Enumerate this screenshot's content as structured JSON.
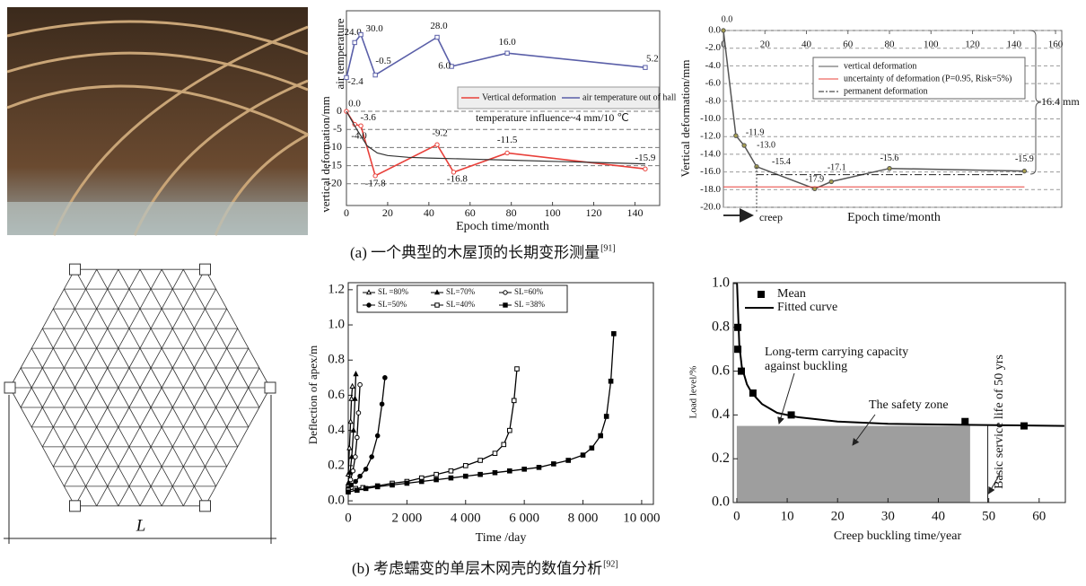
{
  "captions": [
    {
      "text": "(a) 一个典型的木屋顶的长期变形测量",
      "ref": "[91]"
    },
    {
      "text": "(b) 考虑蠕变的单层木网壳的数值分析",
      "ref": "[92]"
    }
  ],
  "diagram": {
    "label": "L"
  },
  "chart_data": [
    {
      "type": "line",
      "x_label": "Epoch time/month",
      "y_label": "vertical deformation/mm",
      "y2_label": "air temperature",
      "xlim": [
        0,
        152
      ],
      "xticks": [
        0,
        20,
        40,
        60,
        80,
        100,
        120,
        140
      ],
      "ylim": [
        -26,
        1.5
      ],
      "yticks": [
        0,
        -5,
        -10,
        -15,
        -20
      ],
      "y2lim": [
        -15,
        48
      ],
      "grid": true,
      "annotation": "temperature influence~4 mm/10 ℃",
      "series": [
        {
          "name": "Vertical deformation",
          "color": "#e8403a",
          "x": [
            0,
            4,
            7,
            14,
            44,
            52,
            78,
            145
          ],
          "values": [
            0,
            -3.6,
            -4.0,
            -17.8,
            -9.2,
            -16.8,
            -11.5,
            -15.9
          ],
          "value_labels": [
            "0.0",
            "-3.6",
            "-4.0",
            "-17.8",
            "-9.2",
            "-16.8",
            "-11.5",
            "-15.9"
          ]
        },
        {
          "name": "air temperature out of hall",
          "color": "#5a5fa8",
          "axis": "y2",
          "x": [
            0,
            4,
            7,
            14,
            44,
            51,
            78,
            145
          ],
          "values": [
            -2.4,
            24.0,
            30.0,
            -0.5,
            28.0,
            6.0,
            16.0,
            5.2
          ],
          "value_labels": [
            "-2.4",
            "24.0",
            "30.0",
            "-0.5",
            "28.0",
            "6.0",
            "16.0",
            "5.2"
          ]
        },
        {
          "color": "#333333",
          "x": [
            0,
            5,
            10,
            15,
            20,
            30,
            40,
            60,
            80,
            100,
            120,
            145
          ],
          "values": [
            0,
            -5,
            -9.5,
            -11.5,
            -12.2,
            -12.7,
            -12.9,
            -13.2,
            -13.5,
            -13.8,
            -14.1,
            -14.5
          ]
        }
      ]
    },
    {
      "type": "line",
      "x_label": "Epoch time/month",
      "y_label": "Vertical deformation/mm",
      "xlim": [
        0,
        163
      ],
      "xticks": [
        0,
        20,
        40,
        60,
        80,
        100,
        120,
        140,
        160
      ],
      "ylim": [
        -20,
        0
      ],
      "yticks": [
        {
          "value": 0,
          "label": "0.0"
        },
        {
          "value": -2,
          "label": "-2.0"
        },
        {
          "value": -4,
          "label": "-4.0"
        },
        {
          "value": -6,
          "label": "-6.0"
        },
        {
          "value": -8,
          "label": "-8.0"
        },
        {
          "value": -10,
          "label": "-10.0"
        },
        {
          "value": -12,
          "label": "-12.0"
        },
        {
          "value": -14,
          "label": "-14.0"
        },
        {
          "value": -16,
          "label": "-16.0"
        },
        {
          "value": -18,
          "label": "-18.0"
        },
        {
          "value": -20,
          "label": "-20.0"
        }
      ],
      "grid": true,
      "annotations": {
        "total": "16.4 mm",
        "creep": "creep"
      },
      "series": [
        {
          "name": "vertical deformation",
          "color": "#555555",
          "marker_color": "#a8a050",
          "x": [
            0,
            6,
            10,
            16,
            44,
            52,
            80,
            145
          ],
          "values": [
            0,
            -11.9,
            -13.0,
            -15.4,
            -17.9,
            -17.1,
            -15.6,
            -15.9
          ],
          "value_labels": [
            "0.0",
            "-11.9",
            "-13.0",
            "-15.4",
            "-17.9",
            "-17.1",
            "-15.6",
            "-15.9"
          ]
        },
        {
          "name": "uncertainty of deformation (P=0.95, Risk=5%)",
          "color": "#e8403a",
          "x": [
            0,
            145
          ],
          "values": [
            -17.7,
            -17.7
          ]
        },
        {
          "name": "permanent deformation",
          "color": "#222222",
          "dash": "dashdot",
          "x": [
            16,
            145
          ],
          "values": [
            -16.3,
            -16.3
          ]
        }
      ]
    },
    {
      "type": "line",
      "x_label": "Time /day",
      "y_label": "Deflection of apex/m",
      "xlim": [
        0,
        10400
      ],
      "xticks": [
        0,
        {
          "value": 2000,
          "label": "2 000"
        },
        {
          "value": 4000,
          "label": "4 000"
        },
        {
          "value": 6000,
          "label": "6 000"
        },
        {
          "value": 8000,
          "label": "8 000"
        },
        {
          "value": 10000,
          "label": "10 000"
        }
      ],
      "ylim": [
        -0.02,
        1.24
      ],
      "yticks": [
        {
          "value": 0,
          "label": "0.0"
        },
        {
          "value": 0.2,
          "label": "0.2"
        },
        {
          "value": 0.4,
          "label": "0.4"
        },
        {
          "value": 0.6,
          "label": "0.6"
        },
        {
          "value": 0.8,
          "label": "0.8"
        },
        {
          "value": 1.0,
          "label": "1.0"
        },
        {
          "value": 1.2,
          "label": "1.2"
        }
      ],
      "series": [
        {
          "name": "SL =80%",
          "color": "#000000",
          "marker": "triangle-open",
          "x": [
            0,
            40,
            80,
            110,
            140
          ],
          "values": [
            0.15,
            0.3,
            0.45,
            0.58,
            0.65
          ]
        },
        {
          "name": "SL=70%",
          "color": "#000000",
          "marker": "triangle",
          "x": [
            0,
            60,
            120,
            180,
            230,
            260
          ],
          "values": [
            0.1,
            0.16,
            0.25,
            0.4,
            0.58,
            0.72
          ]
        },
        {
          "name": "SL=60%",
          "color": "#000000",
          "marker": "circle-open",
          "x": [
            0,
            80,
            160,
            240,
            300,
            350,
            400
          ],
          "values": [
            0.08,
            0.12,
            0.17,
            0.25,
            0.36,
            0.5,
            0.66
          ]
        },
        {
          "name": "SL=50%",
          "color": "#000000",
          "marker": "circle",
          "x": [
            0,
            100,
            250,
            400,
            600,
            800,
            1000,
            1150,
            1250
          ],
          "values": [
            0.07,
            0.09,
            0.11,
            0.14,
            0.18,
            0.25,
            0.37,
            0.55,
            0.7
          ]
        },
        {
          "name": "SL=40%",
          "color": "#000000",
          "marker": "square-open",
          "x": [
            0,
            250,
            500,
            1000,
            1500,
            2000,
            2500,
            3000,
            3500,
            4000,
            4500,
            5000,
            5300,
            5500,
            5650,
            5750
          ],
          "values": [
            0.06,
            0.07,
            0.075,
            0.085,
            0.1,
            0.11,
            0.13,
            0.15,
            0.17,
            0.2,
            0.23,
            0.27,
            0.32,
            0.4,
            0.57,
            0.75
          ]
        },
        {
          "name": "SL =38%",
          "color": "#000000",
          "marker": "square",
          "x": [
            0,
            300,
            600,
            1000,
            1500,
            2000,
            2500,
            3000,
            3500,
            4000,
            4500,
            5000,
            5500,
            6000,
            6500,
            7000,
            7500,
            8000,
            8300,
            8600,
            8800,
            8950,
            9050
          ],
          "values": [
            0.05,
            0.06,
            0.07,
            0.08,
            0.09,
            0.1,
            0.11,
            0.12,
            0.13,
            0.14,
            0.15,
            0.16,
            0.17,
            0.18,
            0.19,
            0.21,
            0.23,
            0.26,
            0.3,
            0.37,
            0.48,
            0.68,
            0.95
          ]
        }
      ]
    },
    {
      "type": "line",
      "x_label": "Creep buckling time/year",
      "y_label": "Load level/%",
      "xlim": [
        -0.7,
        65.2
      ],
      "xticks": [
        0,
        10,
        20,
        30,
        40,
        50,
        60
      ],
      "ylim": [
        0,
        1.0
      ],
      "yticks": [
        {
          "value": 0,
          "label": "0.0"
        },
        {
          "value": 0.2,
          "label": "0.2"
        },
        {
          "value": 0.4,
          "label": "0.4"
        },
        {
          "value": 0.6,
          "label": "0.6"
        },
        {
          "value": 0.8,
          "label": "0.8"
        },
        {
          "value": 1.0,
          "label": "1.0"
        }
      ],
      "safety_zone": {
        "x": [
          0,
          46.3
        ],
        "y": [
          0,
          0.35
        ]
      },
      "service_life_x": 49.8,
      "annotations": {
        "capacity": [
          "Long-term carrying capacity",
          "against buckling"
        ],
        "zone": "The safety zone",
        "service_life": "Basic service life of 50 yrs"
      },
      "series": [
        {
          "name": "Mean",
          "color": "#000000",
          "marker": "square",
          "line": false,
          "x": [
            0.2,
            0.2,
            0.9,
            3.2,
            10.8,
            45.3,
            57.0
          ],
          "values": [
            0.8,
            0.7,
            0.6,
            0.5,
            0.4,
            0.37,
            0.35
          ]
        },
        {
          "name": "Fitted curve",
          "color": "#000000",
          "x": [
            0.05,
            0.5,
            1,
            2,
            3,
            5,
            8,
            12,
            20,
            30,
            45,
            65
          ],
          "values": [
            1.0,
            0.72,
            0.62,
            0.54,
            0.5,
            0.45,
            0.41,
            0.39,
            0.37,
            0.36,
            0.355,
            0.35
          ]
        }
      ]
    }
  ]
}
